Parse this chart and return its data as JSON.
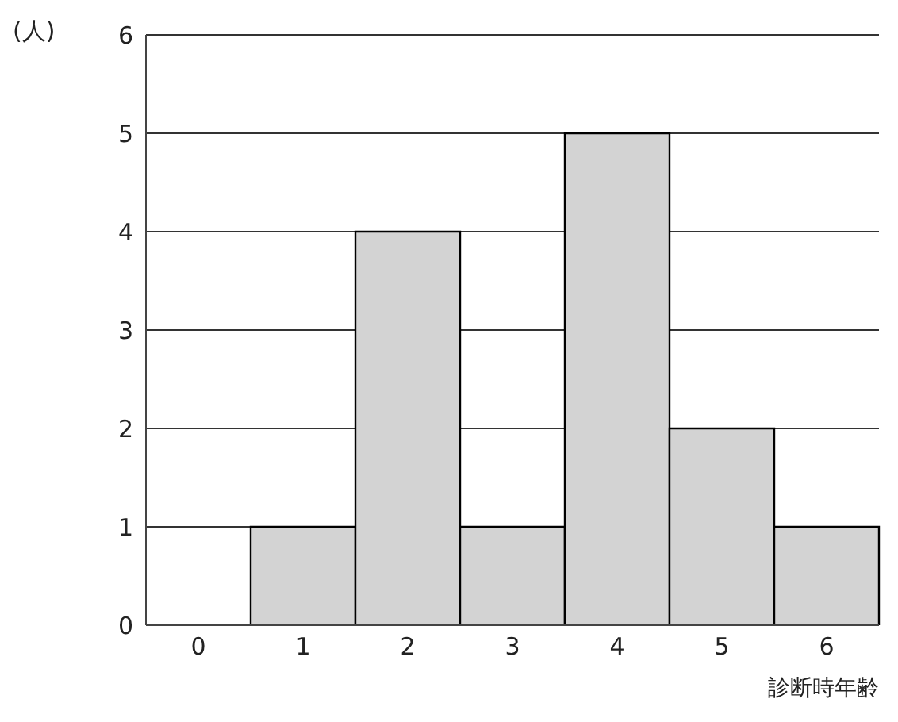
{
  "chart_data": {
    "type": "bar",
    "ylabel": "(人)",
    "xlabel": "診断時年齢",
    "categories": [
      "0",
      "1",
      "2",
      "3",
      "4",
      "5",
      "6"
    ],
    "values": [
      0,
      1,
      4,
      1,
      5,
      2,
      1
    ],
    "color": "#d3d3d3",
    "ylim": [
      0,
      6
    ],
    "yticks": [
      0,
      1,
      2,
      3,
      4,
      5,
      6
    ],
    "grid": "y"
  }
}
